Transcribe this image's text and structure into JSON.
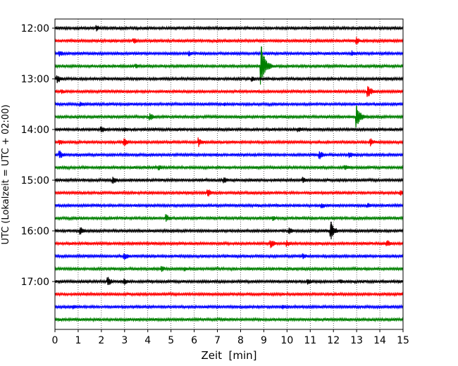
{
  "chart_data": {
    "type": "line",
    "title": "",
    "xlabel": "Zeit  [min]",
    "ylabel": "UTC (Lokalzeit = UTC + 02:00)",
    "xlim": [
      0,
      15
    ],
    "x_ticks": [
      "0",
      "1",
      "2",
      "3",
      "4",
      "5",
      "6",
      "7",
      "8",
      "9",
      "10",
      "11",
      "12",
      "13",
      "14",
      "15"
    ],
    "y_ticks": [
      "12:00",
      "13:00",
      "14:00",
      "15:00",
      "16:00",
      "17:00"
    ],
    "grid": "vertical-dotted",
    "colors": [
      "#000000",
      "#ff0000",
      "#0000ff",
      "#008000"
    ],
    "trace_interval_min": 15,
    "traces": [
      {
        "start": "12:00",
        "color": "#000000",
        "events": [
          [
            1.8,
            5
          ],
          [
            7.5,
            3
          ]
        ]
      },
      {
        "start": "12:15",
        "color": "#ff0000",
        "events": [
          [
            3.4,
            5
          ],
          [
            13.0,
            6
          ]
        ]
      },
      {
        "start": "12:30",
        "color": "#0000ff",
        "events": [
          [
            0.2,
            5
          ],
          [
            5.8,
            4
          ],
          [
            12.8,
            5
          ]
        ]
      },
      {
        "start": "12:45",
        "color": "#008000",
        "events": [
          [
            3.5,
            4
          ],
          [
            8.9,
            28
          ]
        ]
      },
      {
        "start": "13:00",
        "color": "#000000",
        "events": [
          [
            0.1,
            7
          ],
          [
            8.5,
            5
          ]
        ]
      },
      {
        "start": "13:15",
        "color": "#ff0000",
        "events": [
          [
            0.3,
            4
          ],
          [
            13.5,
            9
          ]
        ]
      },
      {
        "start": "13:30",
        "color": "#0000ff",
        "events": [
          [
            1.1,
            4
          ],
          [
            7.3,
            3
          ]
        ]
      },
      {
        "start": "13:45",
        "color": "#008000",
        "events": [
          [
            4.1,
            6
          ],
          [
            13.0,
            16
          ]
        ]
      },
      {
        "start": "14:00",
        "color": "#000000",
        "events": [
          [
            2.0,
            6
          ],
          [
            3.0,
            4
          ],
          [
            10.5,
            4
          ]
        ]
      },
      {
        "start": "14:15",
        "color": "#ff0000",
        "events": [
          [
            0.2,
            5
          ],
          [
            3.0,
            6
          ],
          [
            6.2,
            7
          ],
          [
            13.6,
            6
          ]
        ]
      },
      {
        "start": "14:30",
        "color": "#0000ff",
        "events": [
          [
            0.2,
            7
          ],
          [
            11.4,
            7
          ],
          [
            12.7,
            5
          ]
        ]
      },
      {
        "start": "14:45",
        "color": "#008000",
        "events": [
          [
            4.5,
            4
          ],
          [
            12.5,
            5
          ]
        ]
      },
      {
        "start": "15:00",
        "color": "#000000",
        "events": [
          [
            2.5,
            7
          ],
          [
            7.3,
            5
          ],
          [
            10.7,
            5
          ]
        ]
      },
      {
        "start": "15:15",
        "color": "#ff0000",
        "events": [
          [
            6.6,
            6
          ],
          [
            14.9,
            5
          ]
        ]
      },
      {
        "start": "15:30",
        "color": "#0000ff",
        "events": [
          [
            11.5,
            5
          ],
          [
            13.5,
            4
          ]
        ]
      },
      {
        "start": "15:45",
        "color": "#008000",
        "events": [
          [
            4.8,
            6
          ],
          [
            9.4,
            4
          ]
        ]
      },
      {
        "start": "16:00",
        "color": "#000000",
        "events": [
          [
            1.1,
            6
          ],
          [
            10.1,
            5
          ],
          [
            11.9,
            13
          ]
        ]
      },
      {
        "start": "16:15",
        "color": "#ff0000",
        "events": [
          [
            9.3,
            7
          ],
          [
            10.0,
            5
          ],
          [
            14.3,
            6
          ]
        ]
      },
      {
        "start": "16:30",
        "color": "#0000ff",
        "events": [
          [
            3.0,
            6
          ],
          [
            10.7,
            5
          ]
        ]
      },
      {
        "start": "16:45",
        "color": "#008000",
        "events": [
          [
            4.6,
            5
          ],
          [
            5.6,
            4
          ]
        ]
      },
      {
        "start": "17:00",
        "color": "#000000",
        "events": [
          [
            2.3,
            7
          ],
          [
            3.0,
            5
          ],
          [
            10.9,
            5
          ],
          [
            12.3,
            4
          ]
        ]
      },
      {
        "start": "17:15",
        "color": "#ff0000",
        "events": []
      },
      {
        "start": "17:30",
        "color": "#0000ff",
        "events": [
          [
            0.8,
            4
          ],
          [
            9.8,
            4
          ]
        ]
      },
      {
        "start": "17:45",
        "color": "#008000",
        "events": []
      }
    ]
  }
}
